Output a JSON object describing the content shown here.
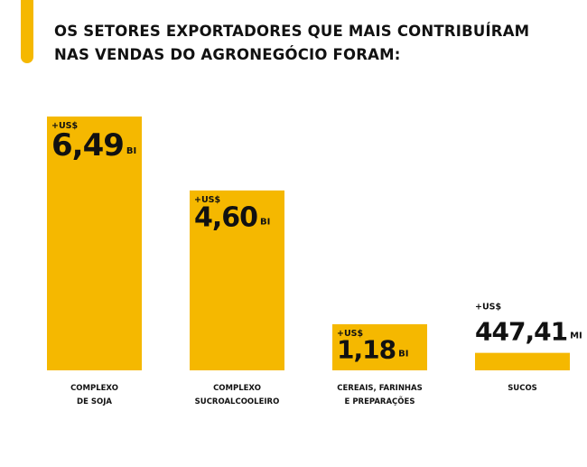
{
  "title": {
    "line1": "OS SETORES EXPORTADORES QUE MAIS CONTRIBUÍRAM",
    "line2": "NAS VENDAS DO AGRONEGÓCIO FORAM:"
  },
  "colors": {
    "accent": "#F5B800",
    "text": "#111111"
  },
  "chart_data": {
    "type": "bar",
    "title": "OS SETORES EXPORTADORES QUE MAIS CONTRIBUÍRAM NAS VENDAS DO AGRONEGÓCIO FORAM:",
    "categories": [
      [
        "COMPLEXO",
        "DE SOJA"
      ],
      [
        "COMPLEXO",
        "SUCROALCOOLEIRO"
      ],
      [
        "CEREAIS, FARINHAS",
        "E PREPARAÇÕES"
      ],
      [
        "SUCOS"
      ]
    ],
    "values_billion_usd": [
      6.49,
      4.6,
      1.18,
      0.44741
    ],
    "data_labels": [
      {
        "prefix": "+US$",
        "value": "6,49",
        "unit": "BI"
      },
      {
        "prefix": "+US$",
        "value": "4,60",
        "unit": "BI"
      },
      {
        "prefix": "+US$",
        "value": "1,18",
        "unit": "BI"
      },
      {
        "prefix": "+US$",
        "value": "447,41",
        "unit": "MI"
      }
    ],
    "ylabel": "",
    "xlabel": "",
    "ylim": [
      0,
      6.49
    ],
    "grid": false,
    "legend": "none"
  }
}
